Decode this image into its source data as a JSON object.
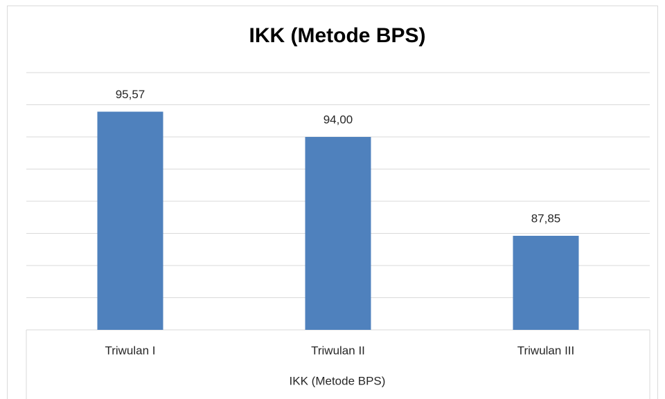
{
  "chart_data": {
    "type": "bar",
    "title": "IKK (Metode BPS)",
    "x_label": "IKK (Metode BPS)",
    "categories": [
      "Triwulan I",
      "Triwulan II",
      "Triwulan III"
    ],
    "values": [
      95.57,
      94.0,
      87.85
    ],
    "value_labels": [
      "95,57",
      "94,00",
      "87,85"
    ],
    "color": "#4f81bd",
    "ylim": [
      82,
      98
    ],
    "yticks": [
      82,
      84,
      86,
      88,
      90,
      92,
      94,
      96,
      98
    ],
    "grid": true
  }
}
